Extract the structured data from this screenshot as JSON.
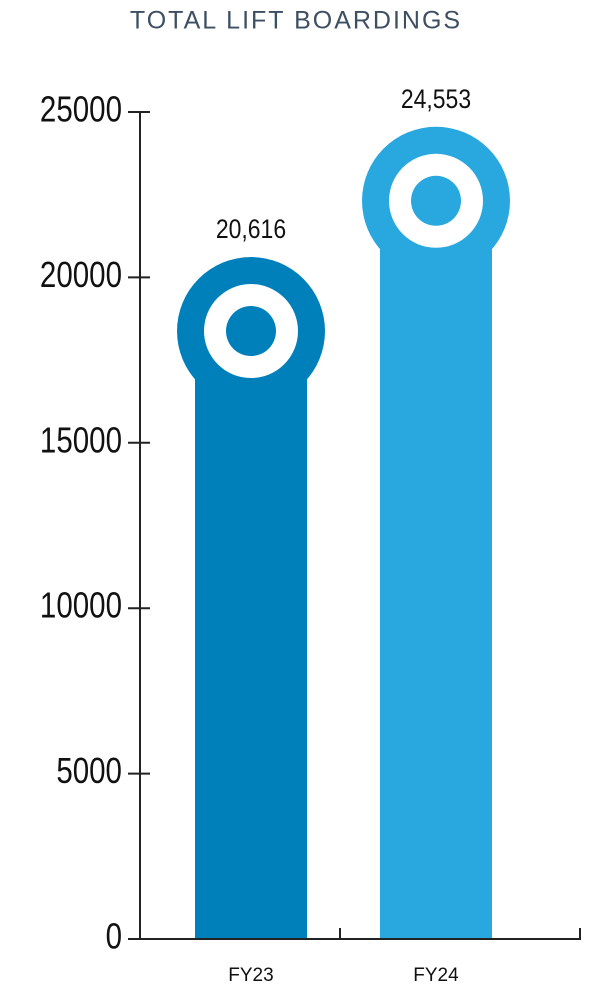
{
  "chart_data": {
    "type": "bar",
    "title": "TOTAL LIFT BOARDINGS",
    "categories": [
      "FY23",
      "FY24"
    ],
    "values": [
      20616,
      24553
    ],
    "value_labels": [
      "20,616",
      "24,553"
    ],
    "colors": [
      "#0080bb",
      "#29a8e0"
    ],
    "ylim": [
      0,
      25000
    ],
    "yticks": [
      0,
      5000,
      10000,
      15000,
      20000,
      25000
    ]
  }
}
